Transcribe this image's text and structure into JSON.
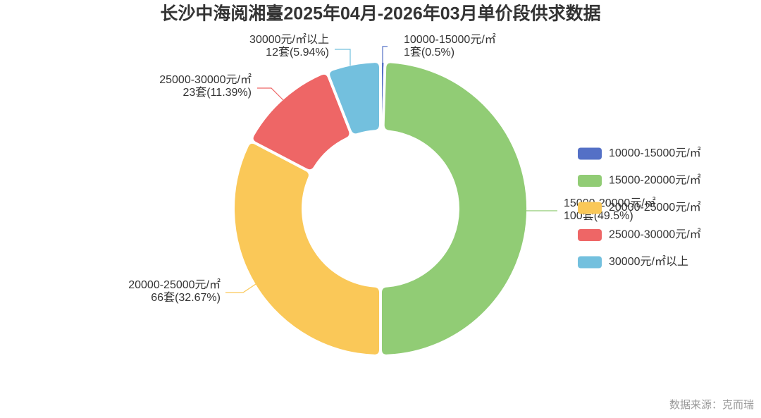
{
  "chart_data": {
    "type": "pie",
    "donut": true,
    "title": "长沙中海阅湘臺2025年04月-2026年03月单价段供求数据",
    "legend_position": "right",
    "slices": [
      {
        "name": "10000-15000元/㎡",
        "value": 1,
        "percent": 0.5,
        "label": "1套(0.5%)",
        "color": "#5470c6"
      },
      {
        "name": "15000-20000元/㎡",
        "value": 100,
        "percent": 49.5,
        "label": "100套(49.5%)",
        "color": "#91cc75"
      },
      {
        "name": "20000-25000元/㎡",
        "value": 66,
        "percent": 32.67,
        "label": "66套(32.67%)",
        "color": "#fac858"
      },
      {
        "name": "25000-30000元/㎡",
        "value": 23,
        "percent": 11.39,
        "label": "23套(11.39%)",
        "color": "#ee6666"
      },
      {
        "name": "30000元/㎡以上",
        "value": 12,
        "percent": 5.94,
        "label": "12套(5.94%)",
        "color": "#73c0de"
      }
    ]
  },
  "source": "数据来源：克而瑞",
  "colors": {
    "background": "#ffffff",
    "title": "#333333",
    "label": "#333333",
    "legend_text": "#333333",
    "source": "#999999",
    "slice_border": "#ffffff"
  }
}
